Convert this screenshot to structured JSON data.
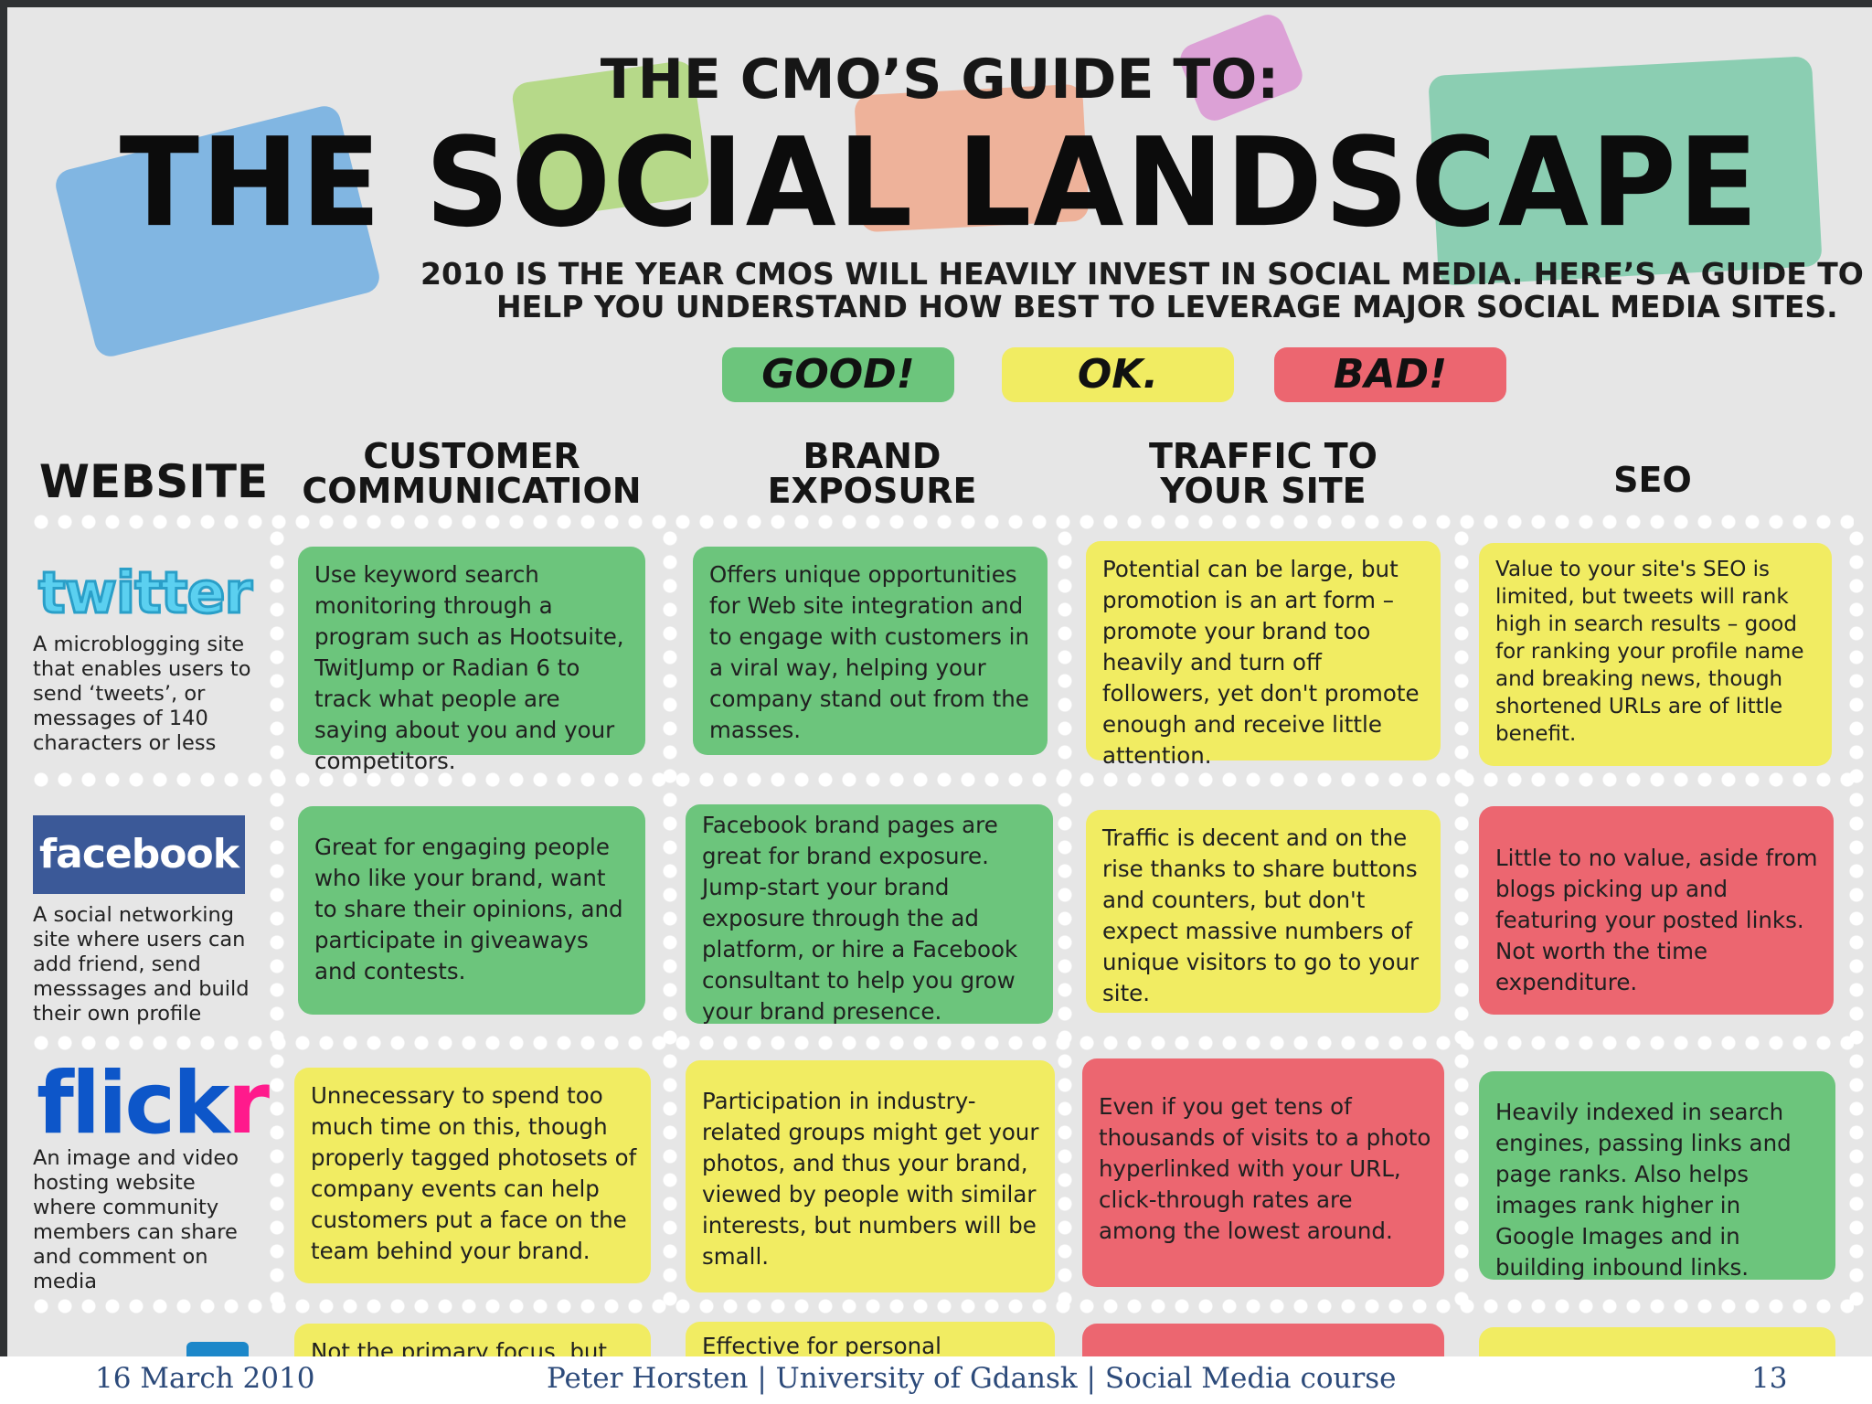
{
  "header": {
    "kicker": "THE CMO’S GUIDE TO:",
    "title": "THE SOCIAL LANDSCAPE",
    "subtitle_line1": "2010 IS THE YEAR CMOS WILL HEAVILY INVEST IN SOCIAL MEDIA.  HERE’S A GUIDE TO",
    "subtitle_line2": "HELP YOU UNDERSTAND HOW BEST TO LEVERAGE MAJOR SOCIAL MEDIA SITES."
  },
  "legend": {
    "good": "GOOD!",
    "ok": "OK.",
    "bad": "BAD!"
  },
  "colors": {
    "good": "#6cc57c",
    "ok": "#f1ec62",
    "bad": "#ec6670",
    "twitter": "#5bd0f0",
    "facebook": "#3b5998",
    "flickr_blue": "#0d56c9",
    "flickr_pink": "#ff1a8c"
  },
  "columns": {
    "website": "WEBSITE",
    "customer_line1": "CUSTOMER",
    "customer_line2": "COMMUNICATION",
    "brand_line1": "BRAND",
    "brand_line2": "EXPOSURE",
    "traffic_line1": "TRAFFIC TO",
    "traffic_line2": "YOUR SITE",
    "seo": "SEO"
  },
  "rows": [
    {
      "logo": "twitter",
      "logo_text": "twitter",
      "description": "A microblogging site that enables users to send ‘tweets’, or messages of 140 characters or less",
      "cells": [
        {
          "rating": "good",
          "text": "Use keyword search monitoring through a program such as Hootsuite, TwitJump or Radian 6 to track what people are saying about you and your competitors."
        },
        {
          "rating": "good",
          "text": "Offers unique opportunities for Web site integration and to engage with customers in a viral way, helping your company stand out from the masses."
        },
        {
          "rating": "ok",
          "text": "Potential can be large, but promotion is an art form – promote your brand too heavily and turn off followers, yet don't promote enough and receive little attention."
        },
        {
          "rating": "ok",
          "text": "Value to your site's SEO is limited, but tweets will rank high in search results – good for ranking your profile name and breaking news, though shortened URLs are of little benefit."
        }
      ]
    },
    {
      "logo": "facebook",
      "logo_text": "facebook",
      "description": "A social networking site where users can add friend, send messsages and build their own profile",
      "cells": [
        {
          "rating": "good",
          "text": "Great for engaging people who like your brand, want to share their opinions, and participate in giveaways and contests."
        },
        {
          "rating": "good",
          "text": "Facebook brand pages are great for brand exposure. Jump-start your brand exposure through the ad platform, or hire a Facebook consultant to help you grow your brand presence."
        },
        {
          "rating": "ok",
          "text": "Traffic is decent and on the rise thanks to share buttons and counters, but don't expect massive numbers of unique visitors to go to your site."
        },
        {
          "rating": "bad",
          "text": "Little to no value, aside from blogs picking up and featuring your posted links. Not worth the time expenditure."
        }
      ]
    },
    {
      "logo": "flickr",
      "logo_text_blue": "flick",
      "logo_text_pink": "r",
      "description": "An image and video hosting website where community members can share and comment on media",
      "cells": [
        {
          "rating": "ok",
          "text": "Unnecessary to spend too much time on this, though properly tagged photosets of company events can help customers put a face on the team behind your brand."
        },
        {
          "rating": "ok",
          "text": "Participation in industry-related groups might get your photos, and thus your brand, viewed by people with similar interests, but numbers will be small."
        },
        {
          "rating": "bad",
          "text": "Even if you get tens of thousands of visits to a photo hyperlinked with your URL, click-through rates are among the lowest around."
        },
        {
          "rating": "good",
          "text": "Heavily indexed in search engines, passing links and page ranks. Also helps images rank higher in Google Images and in building inbound links."
        }
      ]
    },
    {
      "logo": "linkedin",
      "cells": [
        {
          "rating": "ok",
          "text": "Not the primary focus, but cus"
        },
        {
          "rating": "ok",
          "text": "Effective for personal branding"
        },
        {
          "rating": "bad",
          "text": ""
        },
        {
          "rating": "ok",
          "text": ""
        }
      ]
    }
  ],
  "footer": {
    "date": "16 March 2010",
    "course": "Peter Horsten | University of Gdansk | Social Media course",
    "page": "13"
  }
}
